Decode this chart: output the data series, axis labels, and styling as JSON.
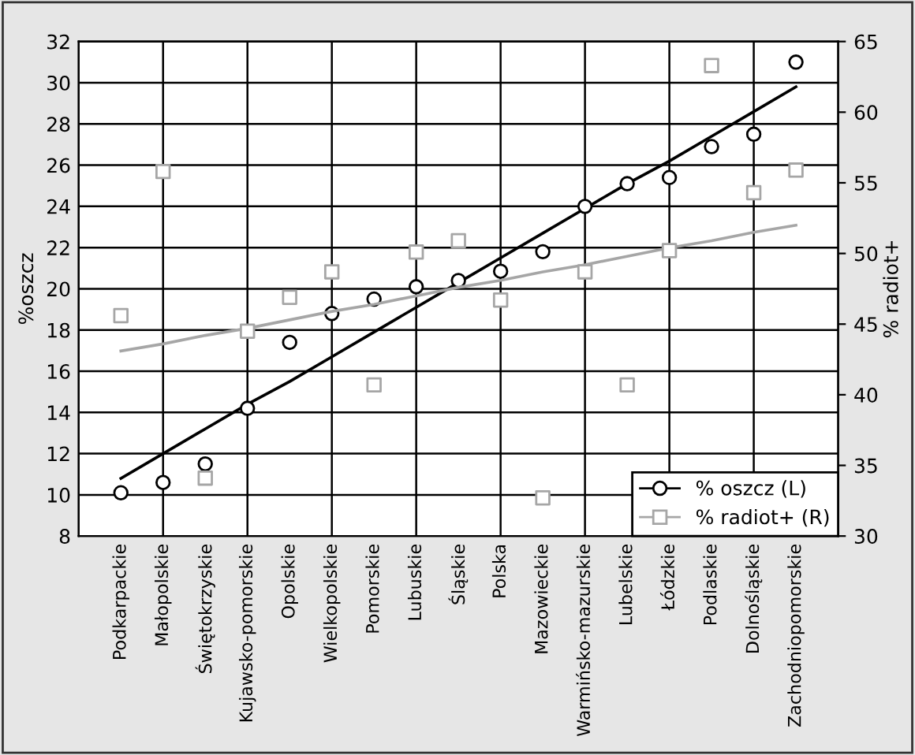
{
  "chart_data": {
    "type": "scatter",
    "ylabel": "%oszcz",
    "y2label": "% radiot+",
    "categories": [
      "Podkarpackie",
      "Małopolskie",
      "Świętokrzyskie",
      "Kujawsko-pomorskie",
      "Opolskie",
      "Wielkopolskie",
      "Pomorskie",
      "Lubuskie",
      "Śląskie",
      "Polska",
      "Mazowieckie",
      "Warmińsko-mazurskie",
      "Lubelskie",
      "Łódzkie",
      "Podlaskie",
      "Dolnośląskie",
      "Zachodniopomorskie"
    ],
    "series": [
      {
        "name": "% oszcz (L)",
        "marker": "circle",
        "color": "#000000",
        "values": [
          10.1,
          10.6,
          11.5,
          14.2,
          17.4,
          18.8,
          19.5,
          20.1,
          20.4,
          20.85,
          21.8,
          24.0,
          25.1,
          25.4,
          26.9,
          27.5,
          31.0
        ]
      },
      {
        "name": "% radiot+ (R)",
        "marker": "square",
        "axis": "y2",
        "color": "#a6a6a6",
        "values": [
          45.6,
          55.8,
          34.1,
          44.5,
          46.9,
          48.7,
          40.7,
          50.1,
          50.9,
          46.7,
          32.7,
          48.7,
          40.7,
          50.2,
          63.3,
          54.3,
          55.9
        ]
      },
      {
        "type": "line",
        "color": "#000000",
        "values": [
          10.8,
          12.0,
          13.2,
          14.4,
          15.5,
          16.7,
          17.9,
          19.1,
          20.3,
          21.5,
          22.7,
          23.9,
          25.1,
          26.2,
          27.4,
          28.6,
          29.8
        ]
      },
      {
        "type": "line",
        "axis": "y2",
        "color": "#a6a6a6",
        "values": [
          43.1,
          43.6,
          44.2,
          44.7,
          45.3,
          45.9,
          46.4,
          47.0,
          47.6,
          48.1,
          48.7,
          49.2,
          49.8,
          50.4,
          50.9,
          51.5,
          52.0
        ]
      }
    ],
    "ylim": [
      8,
      32
    ],
    "yticks": [
      8,
      10,
      12,
      14,
      16,
      18,
      20,
      22,
      24,
      26,
      28,
      30,
      32
    ],
    "y2lim": [
      30,
      65
    ],
    "y2ticks": [
      30,
      35,
      40,
      45,
      50,
      55,
      60,
      65
    ],
    "grid": true,
    "legend": "bottom right"
  }
}
